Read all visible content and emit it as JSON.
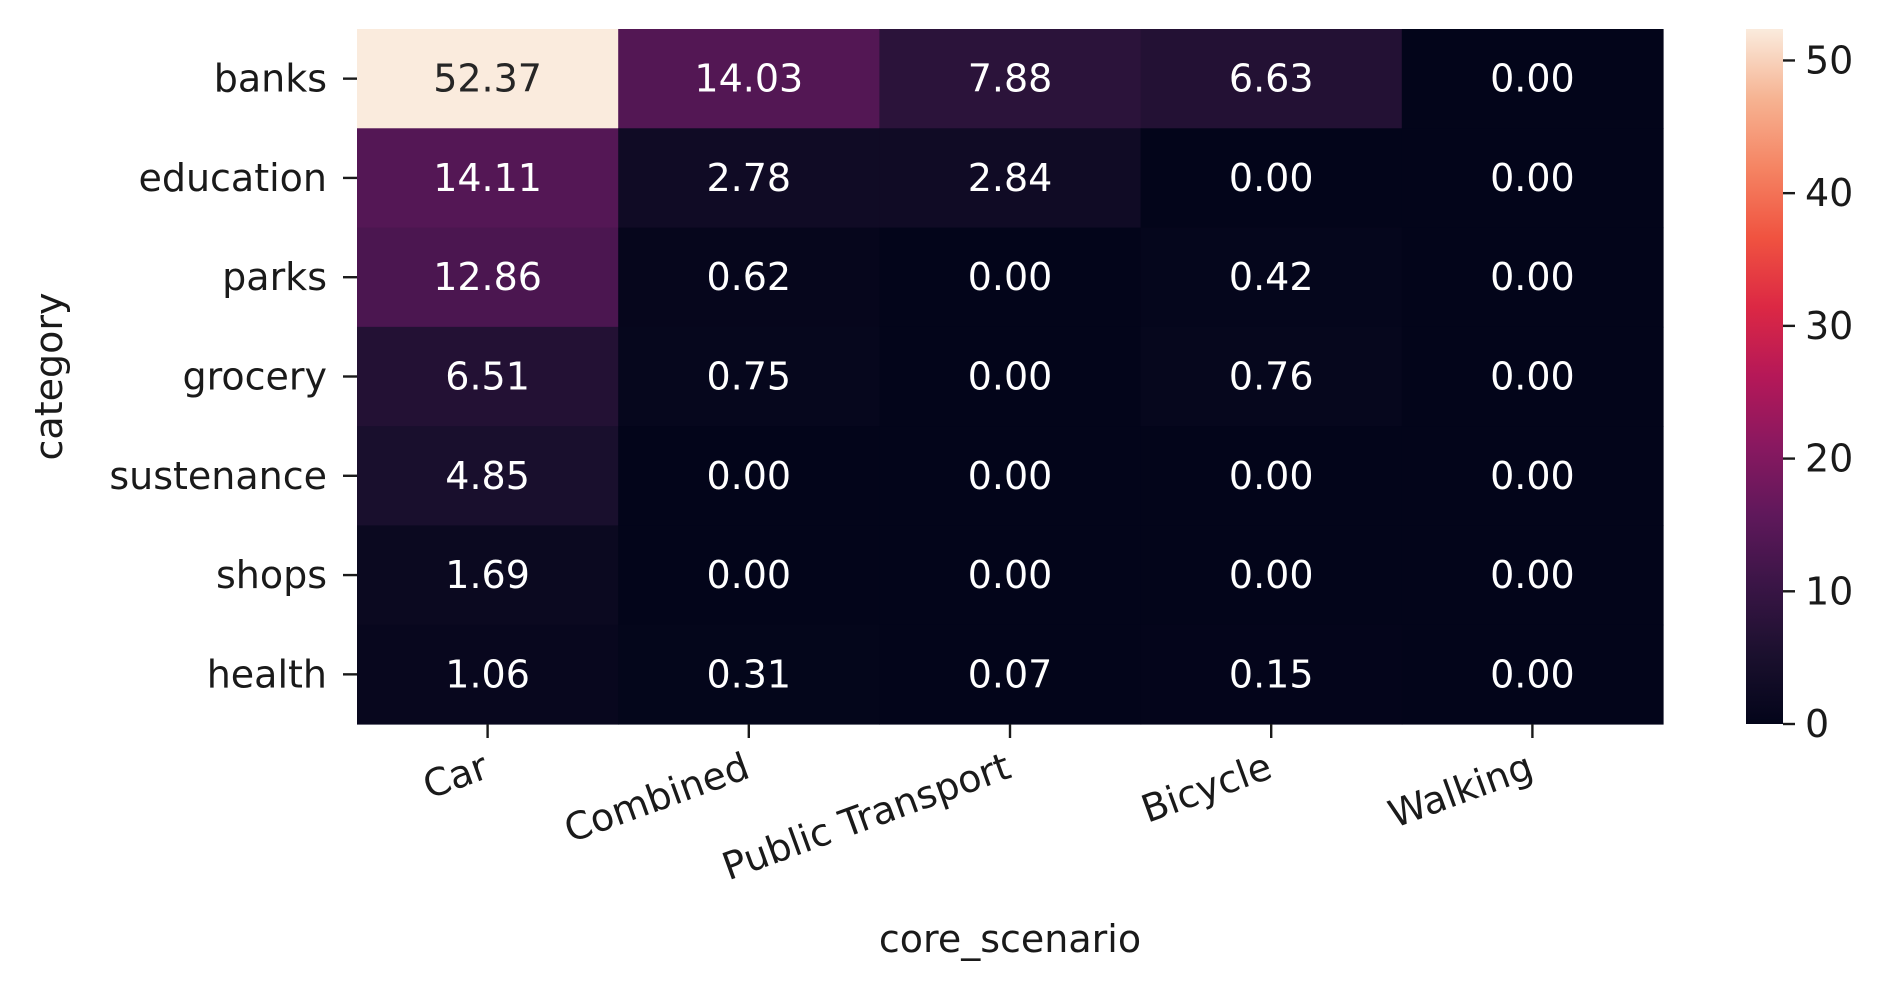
{
  "chart_data": {
    "type": "heatmap",
    "title": "",
    "xlabel": "core_scenario",
    "ylabel": "category",
    "x_categories": [
      "Car",
      "Combined",
      "Public Transport",
      "Bicycle",
      "Walking"
    ],
    "y_categories": [
      "banks",
      "education",
      "parks",
      "grocery",
      "sustenance",
      "shops",
      "health"
    ],
    "values": [
      [
        52.37,
        14.03,
        7.88,
        6.63,
        0.0
      ],
      [
        14.11,
        2.78,
        2.84,
        0.0,
        0.0
      ],
      [
        12.86,
        0.62,
        0.0,
        0.42,
        0.0
      ],
      [
        6.51,
        0.75,
        0.0,
        0.76,
        0.0
      ],
      [
        4.85,
        0.0,
        0.0,
        0.0,
        0.0
      ],
      [
        1.69,
        0.0,
        0.0,
        0.0,
        0.0
      ],
      [
        1.06,
        0.31,
        0.07,
        0.15,
        0.0
      ]
    ],
    "value_format": "0.00",
    "colormap": "rocket",
    "colorbar": {
      "range": [
        0,
        52.37
      ],
      "ticks": [
        0,
        10,
        20,
        30,
        40,
        50
      ],
      "tick_labels": [
        "0",
        "10",
        "20",
        "30",
        "40",
        "50"
      ]
    },
    "legend": "colorbar-right",
    "grid": false
  }
}
